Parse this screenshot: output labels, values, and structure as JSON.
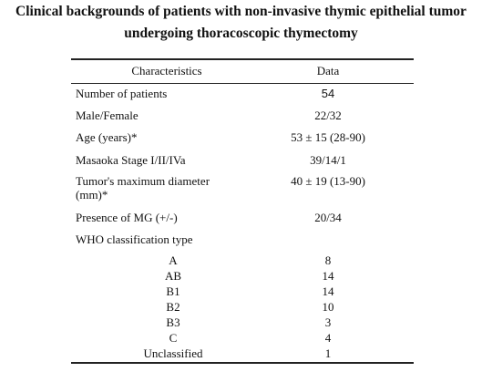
{
  "title": [
    "Clinical backgrounds of patients with non-invasive thymic epithelial tumor",
    "undergoing thoracoscopic thymectomy"
  ],
  "table": {
    "header": [
      "Characteristics",
      "Data"
    ],
    "rows": [
      {
        "characteristic": "Number of patients",
        "data": "54"
      },
      {
        "characteristic": "Male/Female",
        "data": "22/32"
      },
      {
        "characteristic": "Age (years)*",
        "data": "53 ± 15 (28-90)"
      },
      {
        "characteristic": "Masaoka Stage I/II/IVa",
        "data": "39/14/1"
      },
      {
        "characteristic": "Tumor's maximum diameter (mm)*",
        "data": "40 ± 19 (13-90)"
      },
      {
        "characteristic": "Presence of MG (+/-)",
        "data": "20/34"
      },
      {
        "characteristic": "WHO classification type",
        "subtypes": [
          {
            "name": "A",
            "data": "8"
          },
          {
            "name": "AB",
            "data": "14"
          },
          {
            "name": "B1",
            "data": "14"
          },
          {
            "name": "B2",
            "data": "10"
          },
          {
            "name": "B3",
            "data": "3"
          },
          {
            "name": "C",
            "data": "4"
          },
          {
            "name": "Unclassified",
            "data": "1"
          }
        ]
      }
    ]
  }
}
